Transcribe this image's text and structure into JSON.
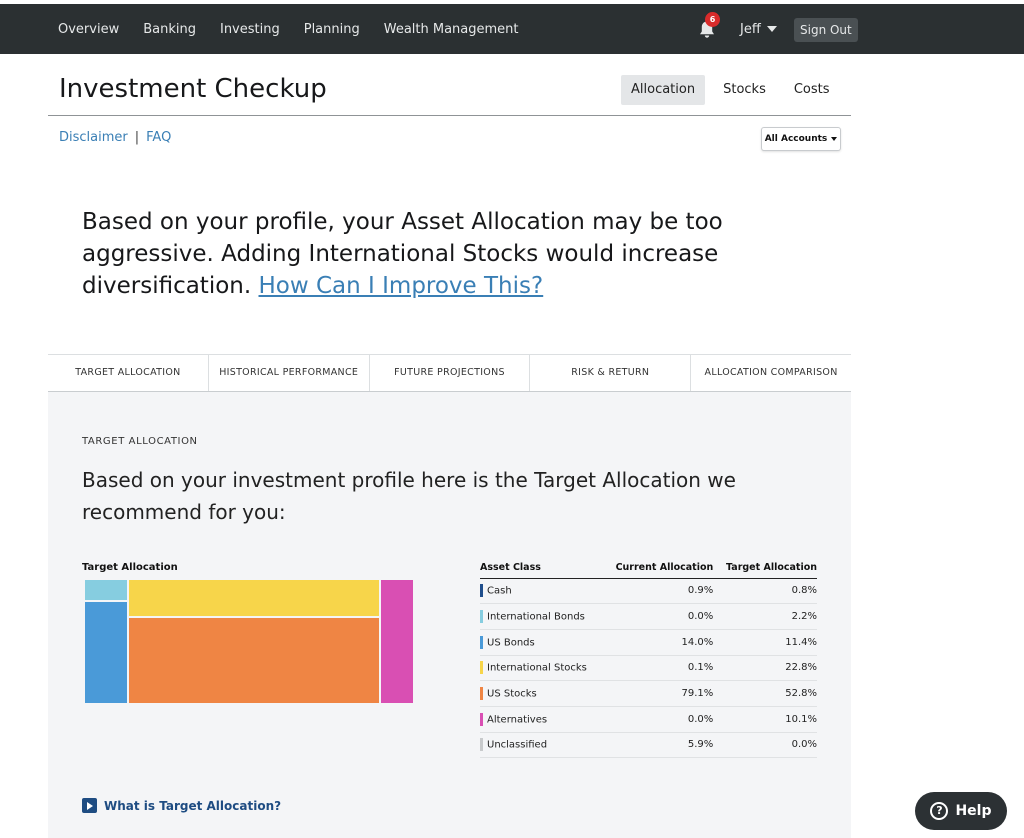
{
  "nav": {
    "items": [
      "Overview",
      "Banking",
      "Investing",
      "Planning",
      "Wealth Management"
    ],
    "notification_count": "6",
    "user_name": "Jeff",
    "sign_out": "Sign Out"
  },
  "header": {
    "title": "Investment Checkup",
    "tabs": [
      {
        "label": "Allocation",
        "active": true
      },
      {
        "label": "Stocks",
        "active": false
      },
      {
        "label": "Costs",
        "active": false
      }
    ]
  },
  "links": {
    "disclaimer": "Disclaimer",
    "separator": "|",
    "faq": "FAQ",
    "accounts_select": "All Accounts"
  },
  "headline": {
    "text": "Based on your profile, your Asset Allocation may be too aggressive. Adding International Stocks would increase diversification.",
    "link": "How Can I Improve This?"
  },
  "tabs": [
    "TARGET ALLOCATION",
    "HISTORICAL PERFORMANCE",
    "FUTURE PROJECTIONS",
    "RISK & RETURN",
    "ALLOCATION COMPARISON"
  ],
  "panel": {
    "label": "TARGET ALLOCATION",
    "headline": "Based on your investment profile here is the Target Allocation we recommend for you:",
    "treemap_title": "Target Allocation",
    "table": {
      "headers": [
        "Asset Class",
        "Current Allocation",
        "Target Allocation"
      ],
      "rows": [
        {
          "name": "Cash",
          "current": "0.9%",
          "target": "0.8%",
          "color": "#1f4e8c"
        },
        {
          "name": "International Bonds",
          "current": "0.0%",
          "target": "2.2%",
          "color": "#86cde0"
        },
        {
          "name": "US Bonds",
          "current": "14.0%",
          "target": "11.4%",
          "color": "#4a9ad8"
        },
        {
          "name": "International Stocks",
          "current": "0.1%",
          "target": "22.8%",
          "color": "#f7d54a"
        },
        {
          "name": "US Stocks",
          "current": "79.1%",
          "target": "52.8%",
          "color": "#ef8544"
        },
        {
          "name": "Alternatives",
          "current": "0.0%",
          "target": "10.1%",
          "color": "#d94fb3"
        },
        {
          "name": "Unclassified",
          "current": "5.9%",
          "target": "0.0%",
          "color": "#c8cacc"
        }
      ]
    },
    "what_link": "What is Target Allocation?"
  },
  "help": {
    "label": "Help"
  }
}
